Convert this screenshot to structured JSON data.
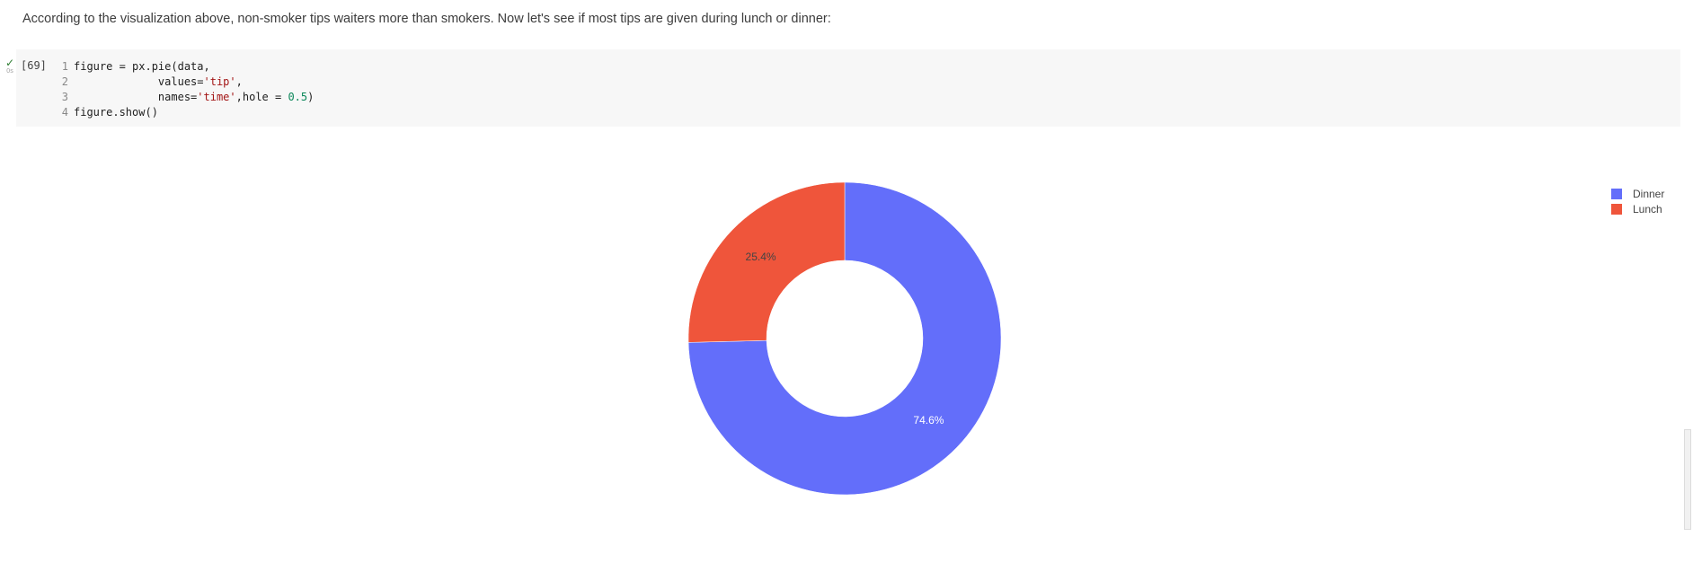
{
  "markdown": {
    "text": "According to the visualization above, non-smoker tips waiters more than smokers. Now let's see if most tips are given during lunch or dinner:"
  },
  "cell": {
    "status_icon": "check-icon",
    "run_time": "0s",
    "execution_count": "[69]",
    "line_numbers": [
      "1",
      "2",
      "3",
      "4"
    ],
    "code": {
      "l1": "figure = px.pie(data,",
      "l2_pre": "             values=",
      "l2_str": "'tip'",
      "l2_post": ",",
      "l3_pre": "             names=",
      "l3_str": "'time'",
      "l3_mid": ",hole = ",
      "l3_num": "0.5",
      "l3_post": ")",
      "l4": "figure.show()"
    }
  },
  "chart_data": {
    "type": "pie",
    "hole": 0.5,
    "slices": [
      {
        "name": "Dinner",
        "percent": 74.6,
        "label": "74.6%",
        "color": "#636efa",
        "text_color": "#ffffff"
      },
      {
        "name": "Lunch",
        "percent": 25.4,
        "label": "25.4%",
        "color": "#ef553b",
        "text_color": "#444444"
      }
    ],
    "legend": {
      "position": "top-right",
      "items": [
        "Dinner",
        "Lunch"
      ]
    }
  }
}
